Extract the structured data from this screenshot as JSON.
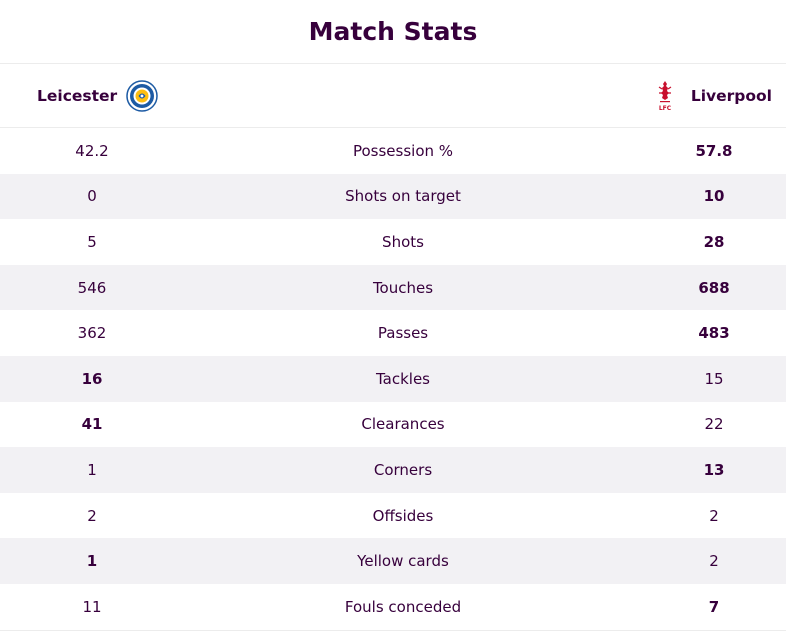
{
  "title": "Match Stats",
  "home_team": {
    "name": "Leicester",
    "crest_icon": "leicester-crest-icon"
  },
  "away_team": {
    "name": "Liverpool",
    "crest_icon": "liverpool-crest-icon",
    "crest_text": "LFC"
  },
  "colors": {
    "text": "#37003c",
    "alt_row": "#f2f1f4",
    "liverpool_red": "#c8102e",
    "leicester_blue": "#1d5ba4",
    "leicester_gold": "#fdbe11"
  },
  "stats": [
    {
      "label": "Possession %",
      "home": "42.2",
      "away": "57.8",
      "leader": "away"
    },
    {
      "label": "Shots on target",
      "home": "0",
      "away": "10",
      "leader": "away"
    },
    {
      "label": "Shots",
      "home": "5",
      "away": "28",
      "leader": "away"
    },
    {
      "label": "Touches",
      "home": "546",
      "away": "688",
      "leader": "away"
    },
    {
      "label": "Passes",
      "home": "362",
      "away": "483",
      "leader": "away"
    },
    {
      "label": "Tackles",
      "home": "16",
      "away": "15",
      "leader": "home"
    },
    {
      "label": "Clearances",
      "home": "41",
      "away": "22",
      "leader": "home"
    },
    {
      "label": "Corners",
      "home": "1",
      "away": "13",
      "leader": "away"
    },
    {
      "label": "Offsides",
      "home": "2",
      "away": "2",
      "leader": "none"
    },
    {
      "label": "Yellow cards",
      "home": "1",
      "away": "2",
      "leader": "home"
    },
    {
      "label": "Fouls conceded",
      "home": "11",
      "away": "7",
      "leader": "away"
    }
  ]
}
